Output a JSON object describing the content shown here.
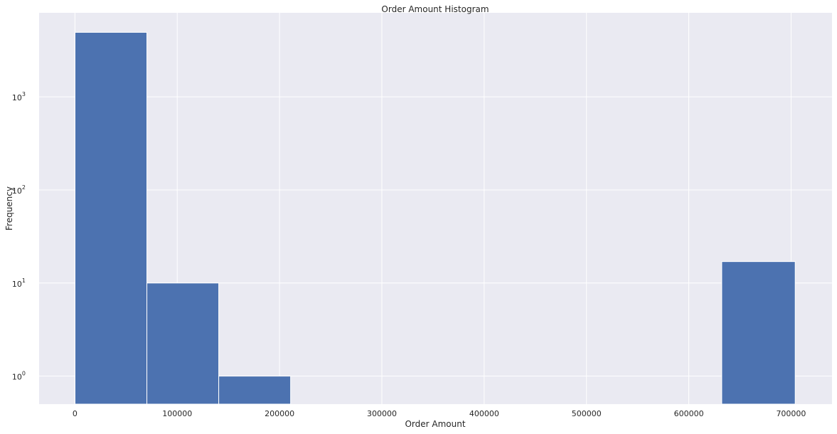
{
  "chart_data": {
    "type": "bar",
    "title": "Order Amount Histogram",
    "xlabel": "Order Amount",
    "ylabel": "Frequency",
    "yscale": "log",
    "grid": true,
    "bins": [
      {
        "start": 90,
        "end": 70326,
        "count": 4935
      },
      {
        "start": 70326,
        "end": 140562,
        "count": 10
      },
      {
        "start": 140562,
        "end": 210798,
        "count": 1
      },
      {
        "start": 210798,
        "end": 281034,
        "count": 0
      },
      {
        "start": 281034,
        "end": 351270,
        "count": 0
      },
      {
        "start": 351270,
        "end": 421506,
        "count": 0
      },
      {
        "start": 421506,
        "end": 491742,
        "count": 0
      },
      {
        "start": 491742,
        "end": 561978,
        "count": 0
      },
      {
        "start": 561978,
        "end": 632214,
        "count": 0
      },
      {
        "start": 632214,
        "end": 704000,
        "count": 17
      }
    ],
    "xlim": [
      -35000,
      740000
    ],
    "ylim": [
      0.5,
      8000
    ],
    "xticks": [
      0,
      100000,
      200000,
      300000,
      400000,
      500000,
      600000,
      700000
    ],
    "xtick_labels": [
      "0",
      "100000",
      "200000",
      "300000",
      "400000",
      "500000",
      "600000",
      "700000"
    ],
    "yticks": [
      1,
      10,
      100,
      1000
    ],
    "ytick_labels": [
      {
        "base": "10",
        "exp": "0"
      },
      {
        "base": "10",
        "exp": "1"
      },
      {
        "base": "10",
        "exp": "2"
      },
      {
        "base": "10",
        "exp": "3"
      }
    ],
    "colors": {
      "bar": "#4c72b0",
      "plot_bg": "#eaeaf2",
      "grid": "#ffffff",
      "text": "#262626"
    }
  }
}
